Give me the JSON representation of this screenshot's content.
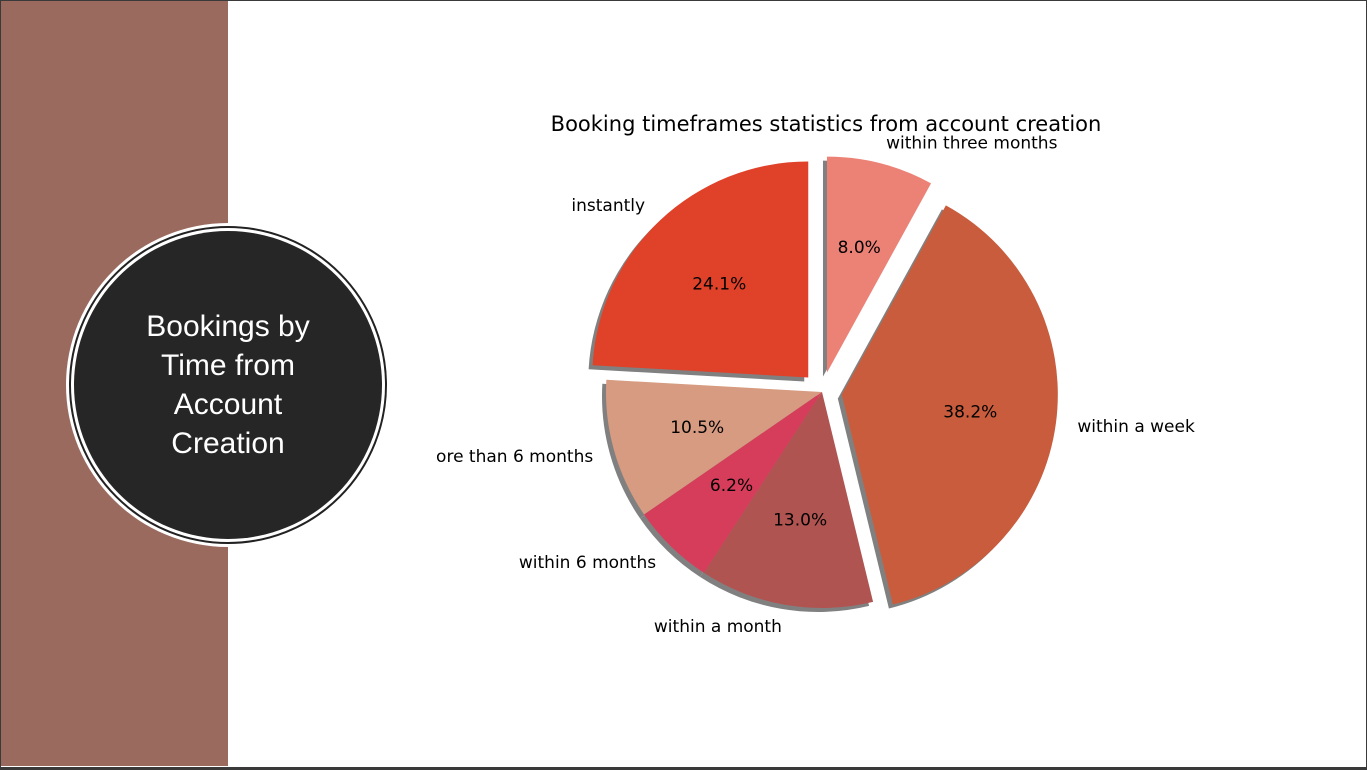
{
  "slide": {
    "title": "Bookings by Time from Account Creation"
  },
  "chart_data": {
    "type": "pie",
    "title": "Booking timeframes statistics from account creation",
    "slices": [
      {
        "label": "instantly",
        "value": 24.1,
        "pct_label": "24.1%",
        "color": "#e04129",
        "explode": true
      },
      {
        "label": "ore than 6 months",
        "value": 10.5,
        "pct_label": "10.5%",
        "color": "#d69b80",
        "explode": false
      },
      {
        "label": "within 6 months",
        "value": 6.2,
        "pct_label": "6.2%",
        "color": "#d63d5a",
        "explode": false
      },
      {
        "label": "within a month",
        "value": 13.0,
        "pct_label": "13.0%",
        "color": "#b05451",
        "explode": false
      },
      {
        "label": "within a week",
        "value": 38.2,
        "pct_label": "38.2%",
        "color": "#c95c3c",
        "explode": true
      },
      {
        "label": "within three months",
        "value": 8.0,
        "pct_label": "8.0%",
        "color": "#ec8176",
        "explode": true
      }
    ],
    "start_angle_deg": 90,
    "direction": "counterclockwise",
    "shadow": true
  }
}
